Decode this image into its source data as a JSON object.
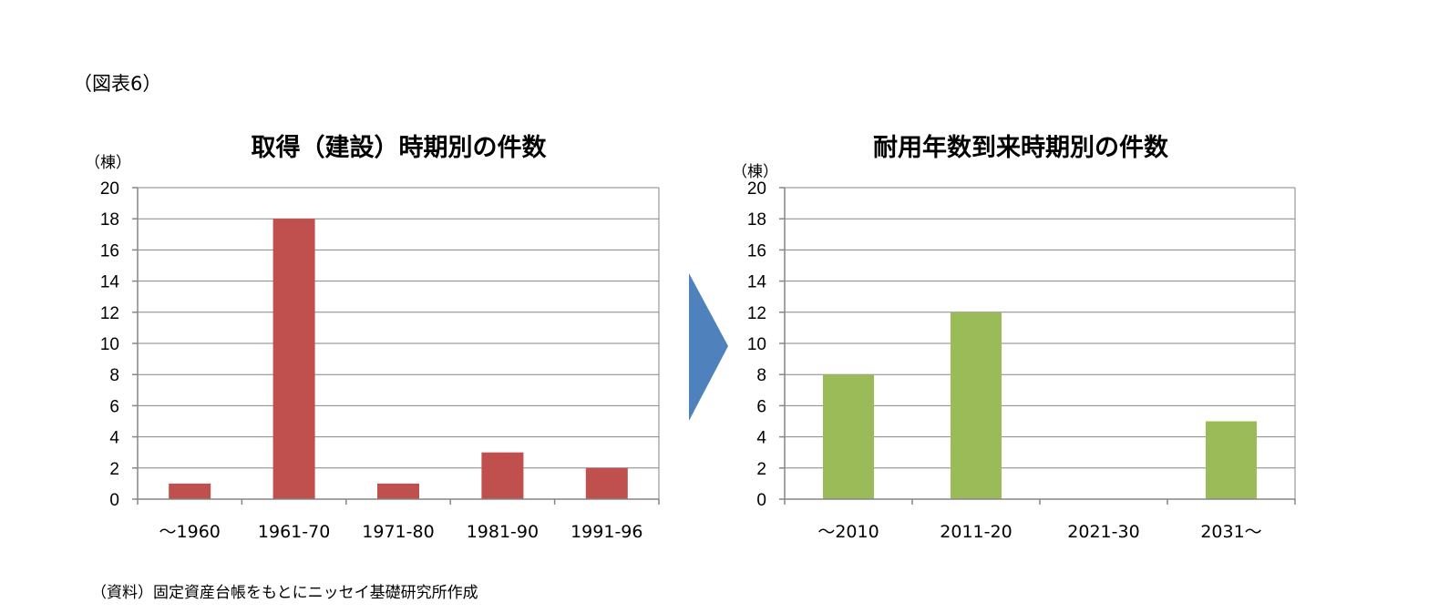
{
  "figure_label": "（図表6）",
  "source_note": "（資料）固定資産台帳をもとにニッセイ基礎研究所作成",
  "arrow": {
    "color": "#4F81BD",
    "icon": "right-arrow-icon"
  },
  "chart_data": [
    {
      "type": "bar",
      "title": "取得（建設）時期別の件数",
      "ylabel": "（棟）",
      "xlabel": "",
      "categories": [
        "～1960",
        "1961-70",
        "1971-80",
        "1981-90",
        "1991-96"
      ],
      "values": [
        1,
        18,
        1,
        3,
        2
      ],
      "ylim": [
        0,
        20
      ],
      "yticks": [
        0,
        2,
        4,
        6,
        8,
        10,
        12,
        14,
        16,
        18,
        20
      ],
      "grid": true,
      "legend": "none",
      "color": "#C0504D"
    },
    {
      "type": "bar",
      "title": "耐用年数到来時期別の件数",
      "ylabel": "（棟）",
      "xlabel": "",
      "categories": [
        "～2010",
        "2011-20",
        "2021-30",
        "2031～"
      ],
      "values": [
        8,
        12,
        0,
        5
      ],
      "ylim": [
        0,
        20
      ],
      "yticks": [
        0,
        2,
        4,
        6,
        8,
        10,
        12,
        14,
        16,
        18,
        20
      ],
      "grid": true,
      "legend": "none",
      "color": "#9BBB59"
    }
  ]
}
